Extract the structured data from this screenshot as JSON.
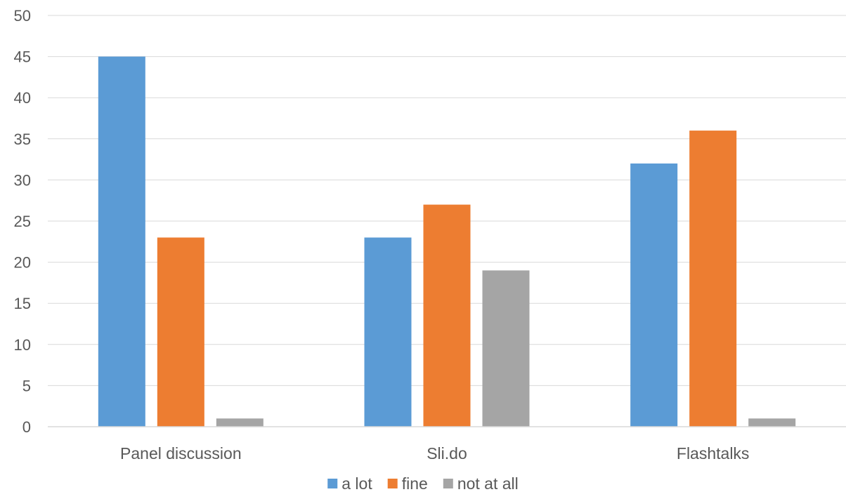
{
  "chart_data": {
    "type": "bar",
    "categories": [
      "Panel discussion",
      "Sli.do",
      "Flashtalks"
    ],
    "series": [
      {
        "name": "a lot",
        "values": [
          45,
          23,
          32
        ],
        "color": "#5b9bd5"
      },
      {
        "name": "fine",
        "values": [
          23,
          27,
          36
        ],
        "color": "#ed7d31"
      },
      {
        "name": "not at all",
        "values": [
          1,
          19,
          1
        ],
        "color": "#a5a5a5"
      }
    ],
    "ylim": [
      0,
      50
    ],
    "yticks": [
      "0",
      "5",
      "10",
      "15",
      "20",
      "25",
      "30",
      "35",
      "40",
      "45",
      "50"
    ],
    "grid": true,
    "legend": "bottom-center"
  }
}
